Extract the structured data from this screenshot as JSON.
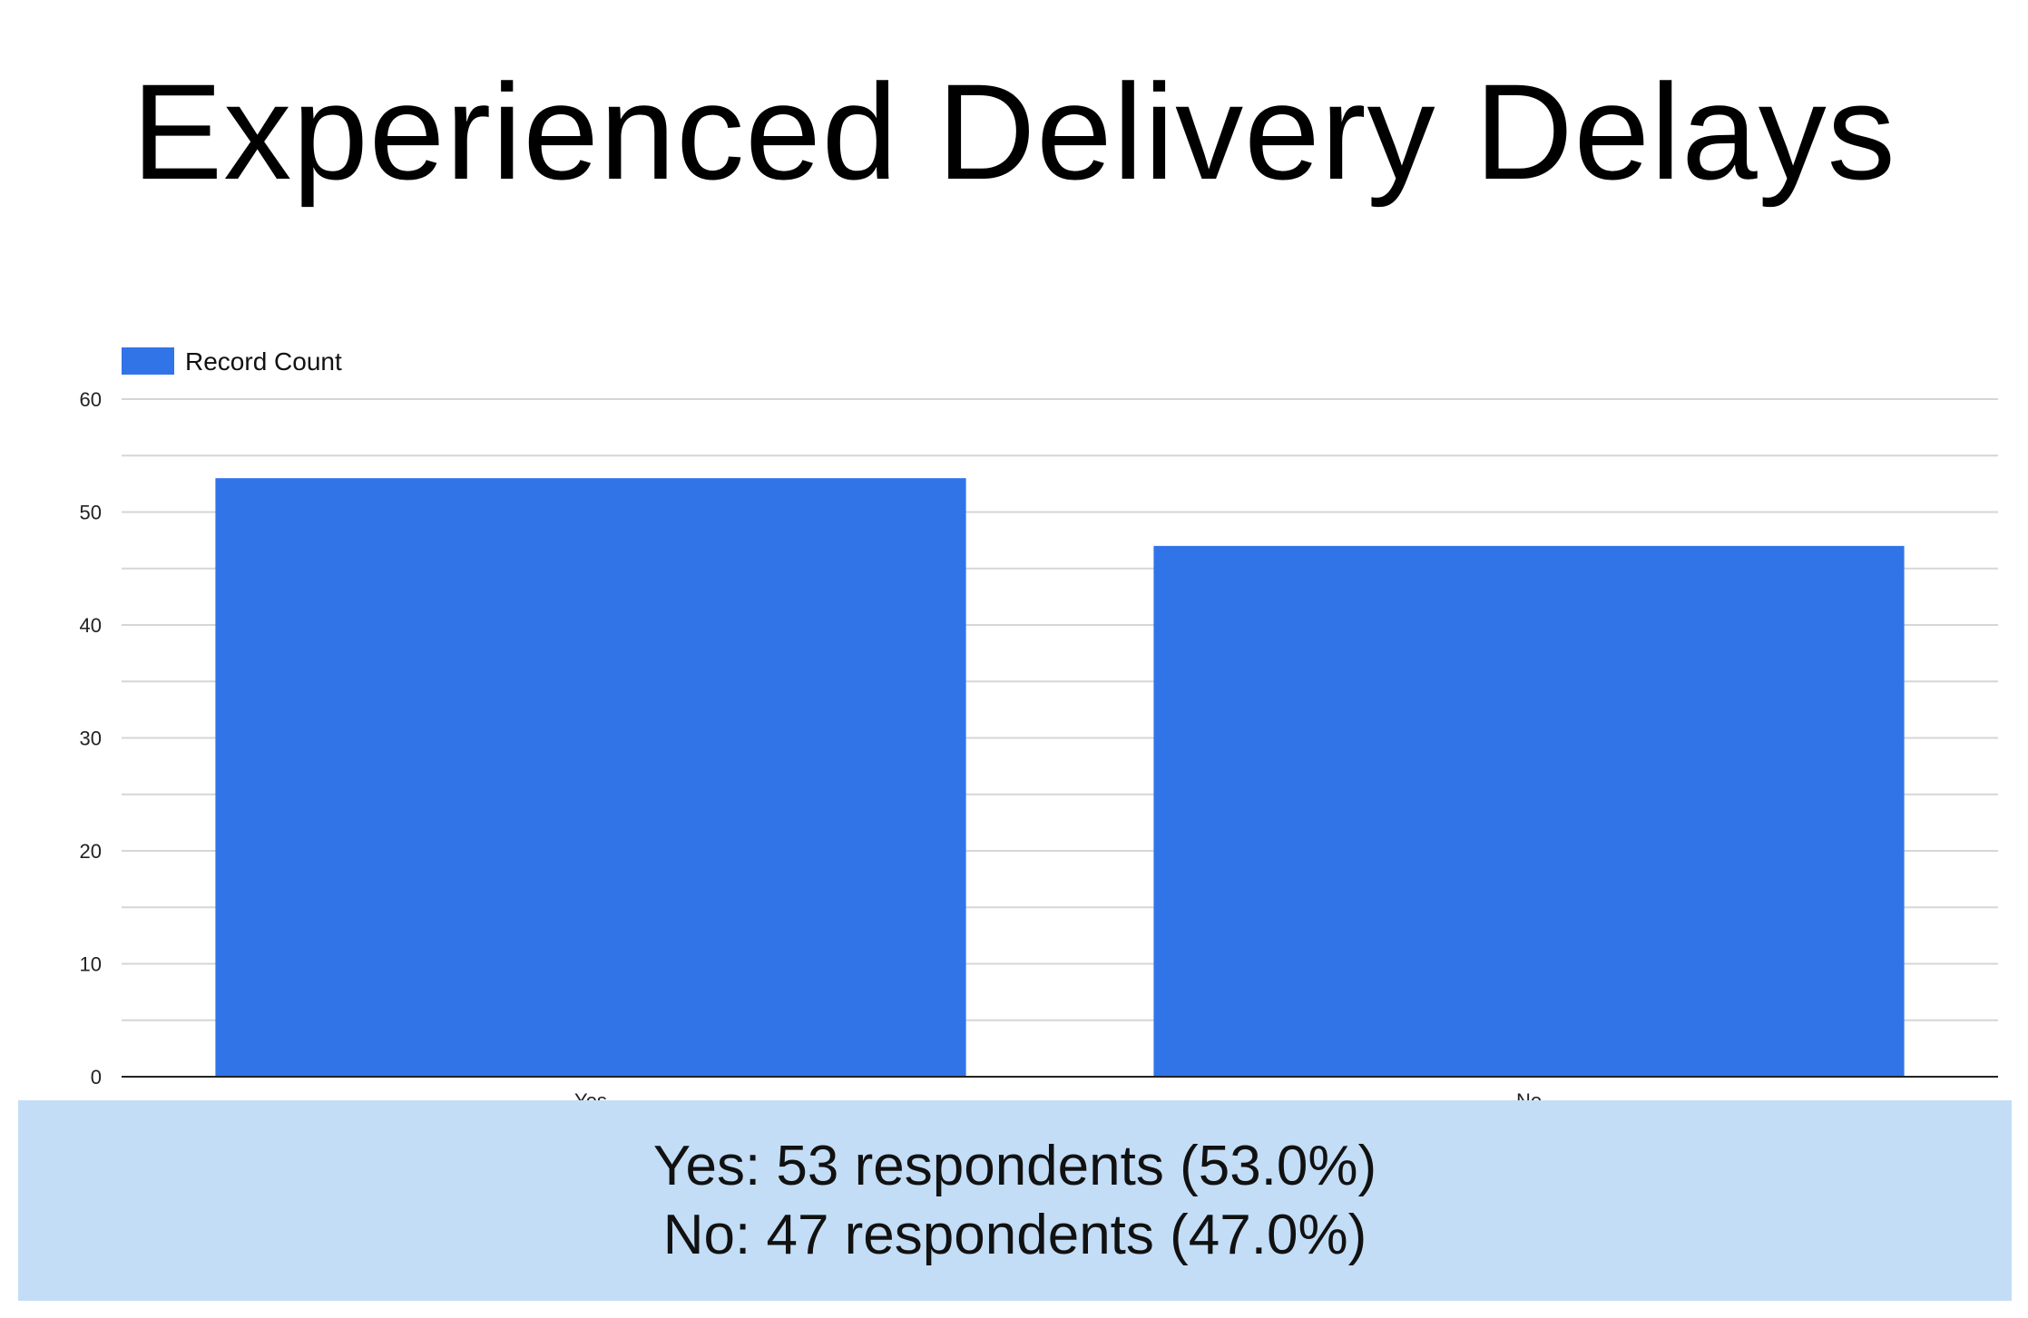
{
  "title": "Experienced Delivery Delays",
  "legend": {
    "label": "Record Count"
  },
  "colors": {
    "bar": "#3174e8",
    "grid": "#d6d6d6",
    "axis": "#222222",
    "caption_background": "#c3ddf6"
  },
  "chart_data": {
    "type": "bar",
    "categories": [
      "Yes",
      "No"
    ],
    "series": [
      {
        "name": "Record Count",
        "values": [
          53,
          47
        ]
      }
    ],
    "xlabel": "",
    "ylabel": "",
    "ylim": [
      0,
      60
    ],
    "yticks": [
      0,
      10,
      20,
      30,
      40,
      50,
      60
    ],
    "grid": true,
    "legend_position": "top-left"
  },
  "summary": {
    "line1": "Yes: 53 respondents (53.0%)",
    "line2": "No: 47 respondents (47.0%)"
  }
}
